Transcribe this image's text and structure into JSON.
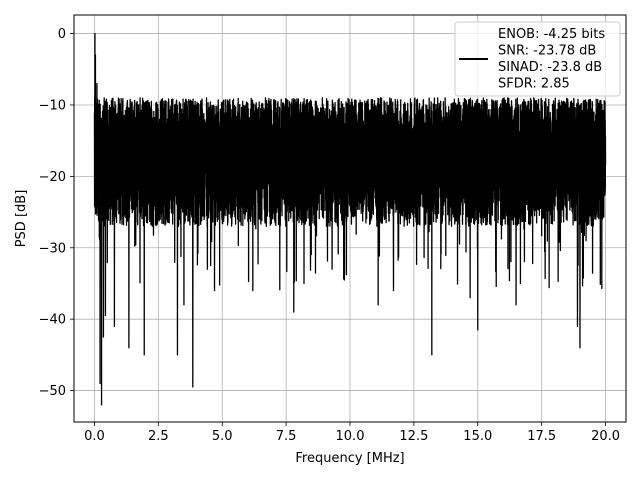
{
  "chart_data": {
    "type": "line",
    "title": "",
    "xlabel": "Frequency [MHz]",
    "ylabel": "PSD [dB]",
    "xlim": [
      -0.8,
      20.8
    ],
    "ylim": [
      -54.4,
      2.6
    ],
    "x_ticks": [
      0.0,
      2.5,
      5.0,
      7.5,
      10.0,
      12.5,
      15.0,
      17.5,
      20.0
    ],
    "x_tick_labels": [
      "0.0",
      "2.5",
      "5.0",
      "7.5",
      "10.0",
      "12.5",
      "15.0",
      "17.5",
      "20.0"
    ],
    "y_ticks": [
      0,
      -10,
      -20,
      -30,
      -40,
      -50
    ],
    "y_tick_labels": [
      "0",
      "−10",
      "−20",
      "−30",
      "−40",
      "−50"
    ],
    "grid": true,
    "legend_position": "top-right",
    "legend_entries": [
      "ENOB: -4.25 bits",
      "SNR: -23.78 dB",
      "SINAD: -23.8 dB",
      "SFDR: 2.85"
    ],
    "series": [
      {
        "color": "#000000",
        "x_range": [
          0.0,
          20.0
        ],
        "points": 4096,
        "envelope": {
          "upper_typical_db": -10,
          "lower_typical_db": -26,
          "min_db": -52,
          "max_db": 0
        },
        "peaks": [
          {
            "x": 0.02,
            "y": 0.0
          },
          {
            "x": 0.04,
            "y": -3.0
          },
          {
            "x": 0.1,
            "y": -7.0
          }
        ],
        "dips": [
          {
            "x": 0.28,
            "y": -52.0
          },
          {
            "x": 0.22,
            "y": -49.0
          },
          {
            "x": 0.35,
            "y": -42.5
          },
          {
            "x": 0.43,
            "y": -39.5
          },
          {
            "x": 0.78,
            "y": -41.0
          },
          {
            "x": 1.35,
            "y": -44.0
          },
          {
            "x": 1.95,
            "y": -45.0
          },
          {
            "x": 3.25,
            "y": -45.0
          },
          {
            "x": 3.5,
            "y": -38.0
          },
          {
            "x": 3.85,
            "y": -49.5
          },
          {
            "x": 4.7,
            "y": -36.0
          },
          {
            "x": 6.2,
            "y": -36.0
          },
          {
            "x": 7.8,
            "y": -39.0
          },
          {
            "x": 8.2,
            "y": -35.0
          },
          {
            "x": 9.3,
            "y": -33.0
          },
          {
            "x": 11.1,
            "y": -38.0
          },
          {
            "x": 11.7,
            "y": -36.0
          },
          {
            "x": 13.2,
            "y": -45.0
          },
          {
            "x": 14.7,
            "y": -37.0
          },
          {
            "x": 15.0,
            "y": -41.5
          },
          {
            "x": 16.5,
            "y": -38.0
          },
          {
            "x": 18.9,
            "y": -41.0
          },
          {
            "x": 19.0,
            "y": -44.0
          }
        ]
      }
    ]
  }
}
